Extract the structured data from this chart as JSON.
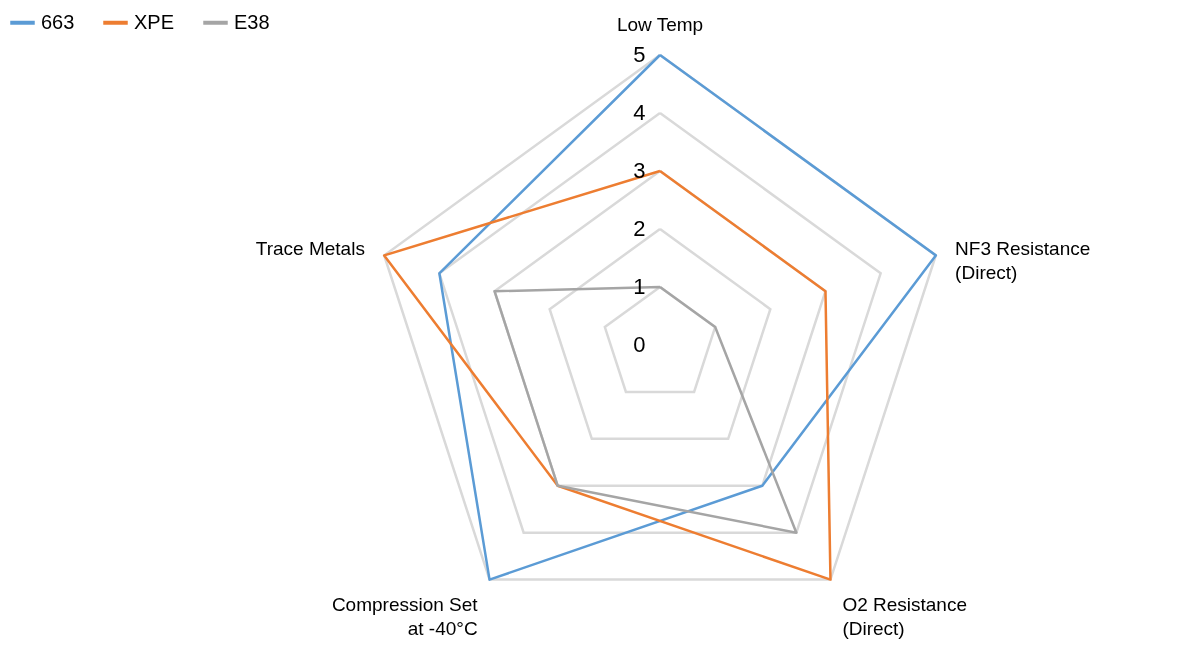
{
  "chart_data": {
    "type": "radar",
    "categories": [
      "Low Temp",
      "NF3 Resistance\n(Direct)",
      "O2 Resistance\n(Direct)",
      "Compression Set\nat -40°C",
      "Trace Metals"
    ],
    "series": [
      {
        "name": "663",
        "color": "#5b9bd5",
        "values": [
          5,
          5,
          3,
          5,
          4
        ]
      },
      {
        "name": "XPE",
        "color": "#ed7d31",
        "values": [
          3,
          3,
          5,
          3,
          5
        ]
      },
      {
        "name": "E38",
        "color": "#a5a5a5",
        "values": [
          1,
          1,
          4,
          3,
          3
        ]
      }
    ],
    "ylim": [
      0,
      5
    ],
    "yticks": [
      0,
      1,
      2,
      3,
      4,
      5
    ],
    "grid": true,
    "legend": "top left"
  }
}
